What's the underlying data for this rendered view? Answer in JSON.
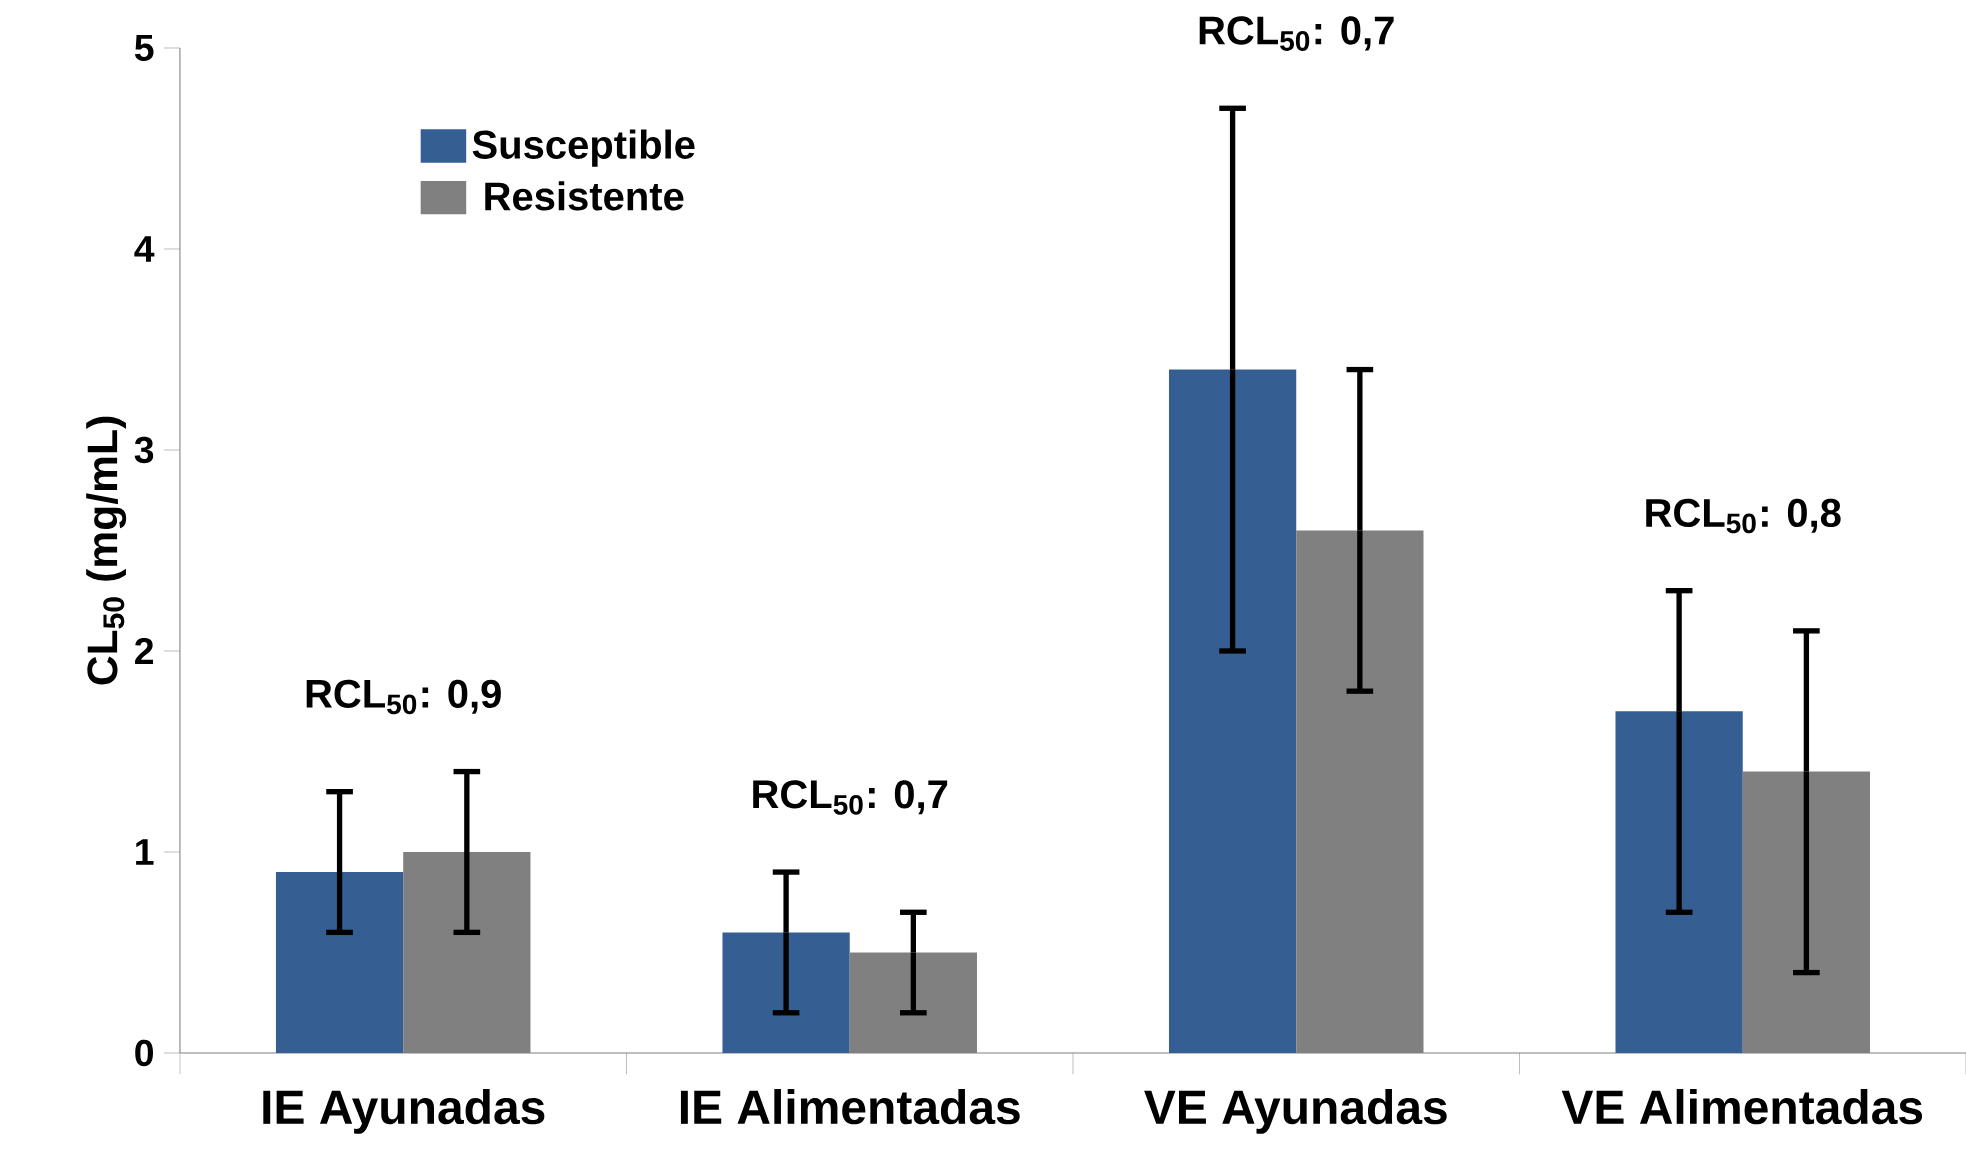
{
  "chart_data": {
    "type": "bar",
    "ylabel": "CL$_{50}$ (mg/mL)",
    "categories": [
      "IE Ayunadas",
      "IE Alimentadas",
      "VE Ayunadas",
      "VE Alimentadas"
    ],
    "series": [
      {
        "name": "Susceptible",
        "color": "#355f93",
        "values": [
          0.9,
          0.6,
          3.4,
          1.7
        ],
        "errors": [
          [
            0.6,
            1.3
          ],
          [
            0.2,
            0.9
          ],
          [
            2.0,
            4.7
          ],
          [
            0.7,
            2.3
          ]
        ]
      },
      {
        "name": "Resistente",
        "color": "#808080",
        "values": [
          1.0,
          0.5,
          2.6,
          1.4
        ],
        "errors": [
          [
            0.6,
            1.4
          ],
          [
            0.2,
            0.7
          ],
          [
            1.8,
            3.4
          ],
          [
            0.4,
            2.1
          ]
        ]
      }
    ],
    "ylim": [
      0,
      5
    ],
    "yticks": [
      0,
      1,
      2,
      3,
      4,
      5
    ],
    "legend": "top left",
    "annotations": [
      "RCL$_{50}$: 0,9",
      "RCL$_{50}$: 0,7",
      "RCL$_{50}$: 0,7",
      "RCL$_{50}$: 0,8"
    ]
  }
}
